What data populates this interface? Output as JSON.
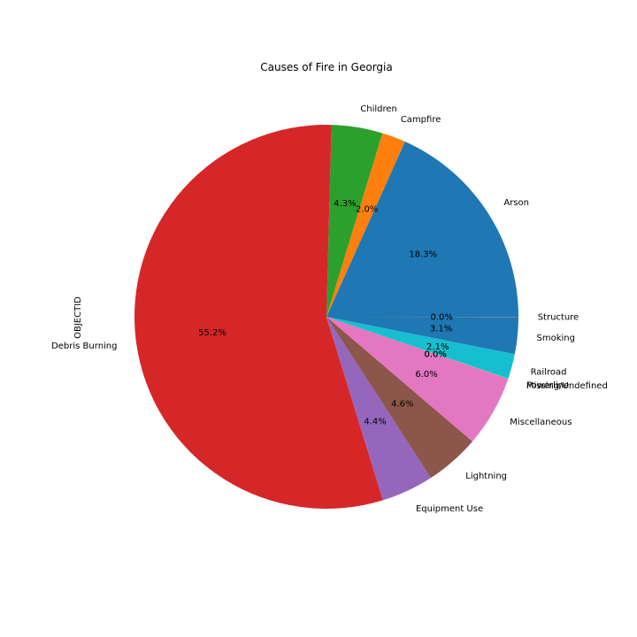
{
  "chart_data": {
    "type": "pie",
    "title": "Causes of Fire in Georgia",
    "ylabel": "OBJECTID",
    "start_angle_deg": 0,
    "direction": "counterclockwise",
    "slices": [
      {
        "label": "Arson",
        "value": 18.3,
        "pct_label": "18.3%",
        "color": "#1f77b4"
      },
      {
        "label": "Campfire",
        "value": 2.0,
        "pct_label": "2.0%",
        "color": "#ff7f0e"
      },
      {
        "label": "Children",
        "value": 4.3,
        "pct_label": "4.3%",
        "color": "#2ca02c"
      },
      {
        "label": "Debris Burning",
        "value": 55.2,
        "pct_label": "55.2%",
        "color": "#d62728"
      },
      {
        "label": "Equipment Use",
        "value": 4.4,
        "pct_label": "4.4%",
        "color": "#9467bd"
      },
      {
        "label": "Lightning",
        "value": 4.6,
        "pct_label": "4.6%",
        "color": "#8c564b"
      },
      {
        "label": "Miscellaneous",
        "value": 6.0,
        "pct_label": "6.0%",
        "color": "#e377c2"
      },
      {
        "label": "Missing/Undefined",
        "value": 0.02,
        "pct_label": "0.0%",
        "color": "#7f7f7f"
      },
      {
        "label": "Powerline",
        "value": 0.02,
        "pct_label": "0.0%",
        "color": "#bcbd22"
      },
      {
        "label": "Railroad",
        "value": 2.1,
        "pct_label": "2.1%",
        "color": "#17becf"
      },
      {
        "label": "Smoking",
        "value": 3.1,
        "pct_label": "3.1%",
        "color": "#1f77b4"
      },
      {
        "label": "Structure",
        "value": 0.02,
        "pct_label": "0.0%",
        "color": "#ff7f0e"
      }
    ]
  }
}
